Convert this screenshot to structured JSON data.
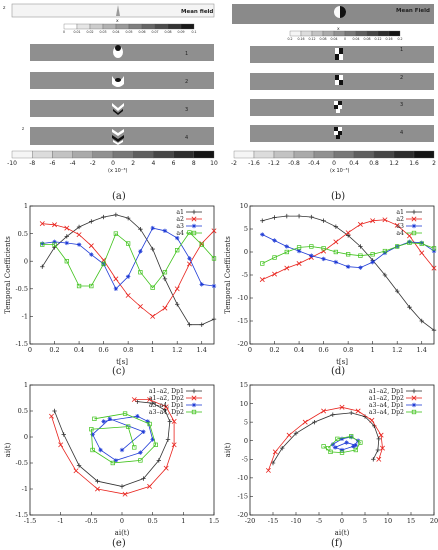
{
  "captions": {
    "a": "(a)",
    "b": "(b)",
    "c": "(c)",
    "d": "(d)",
    "e": "(e)",
    "f": "(f)"
  },
  "field_panels": [
    {
      "id": "a",
      "mean_label": "Mean field",
      "mean_ticks": [
        "0",
        "0.01",
        "0.02",
        "0.03",
        "0.04",
        "0.05",
        "0.06",
        "0.07",
        "0.08",
        "0.09",
        "0.1"
      ],
      "mode_labels": [
        "1",
        "2",
        "3",
        "4"
      ],
      "bar_ticks": [
        "-10",
        "-8",
        "-6",
        "-4",
        "-2",
        "0",
        "2",
        "4",
        "6",
        "8",
        "10"
      ],
      "bar_unit": "(x 10⁻³)"
    },
    {
      "id": "b",
      "mean_label": "Mean Field",
      "mean_ticks": [
        "0.2",
        "0.16",
        "0.12",
        "0.08",
        "0.04",
        "0",
        "0.04",
        "0.08",
        "0.12",
        "0.16",
        "0.2"
      ],
      "mode_labels": [
        "1",
        "2",
        "3",
        "4"
      ],
      "bar_ticks": [
        "-2",
        "-1.6",
        "-1.2",
        "-0.8",
        "-0.4",
        "0",
        "0.4",
        "0.8",
        "1.2",
        "1.6",
        "2"
      ],
      "bar_unit": "(x 10⁻³)"
    }
  ],
  "chart_data": [
    {
      "id": "c",
      "type": "line",
      "ylabel": "Temporal Coefficients",
      "xlabel": "t[s]",
      "xlim": [
        0,
        1.5
      ],
      "ylim": [
        -1.5,
        1
      ],
      "xticks": [
        "0",
        "0.2",
        "0.4",
        "0.6",
        "0.8",
        "1",
        "1.2",
        "1.4"
      ],
      "yticks": [
        "-1.5",
        "-1",
        "-0.5",
        "0",
        "0.5",
        "1"
      ],
      "x": [
        0.1,
        0.2,
        0.3,
        0.4,
        0.5,
        0.6,
        0.7,
        0.8,
        0.9,
        1.0,
        1.1,
        1.2,
        1.3,
        1.4,
        1.5
      ],
      "series": [
        {
          "name": "a1",
          "color": "#333333",
          "marker": "plus",
          "values": [
            -0.1,
            0.25,
            0.45,
            0.62,
            0.72,
            0.8,
            0.84,
            0.78,
            0.58,
            0.22,
            -0.32,
            -0.78,
            -1.15,
            -1.15,
            -1.05
          ]
        },
        {
          "name": "a2",
          "color": "#e8231d",
          "marker": "x",
          "values": [
            0.68,
            0.66,
            0.6,
            0.48,
            0.28,
            0.02,
            -0.32,
            -0.62,
            -0.82,
            -1.0,
            -0.85,
            -0.5,
            -0.05,
            0.32,
            0.55
          ]
        },
        {
          "name": "a3",
          "color": "#1f3bd6",
          "marker": "star",
          "values": [
            0.32,
            0.35,
            0.33,
            0.3,
            0.12,
            -0.05,
            -0.5,
            -0.28,
            0.18,
            0.6,
            0.55,
            0.42,
            0.05,
            -0.42,
            -0.45
          ]
        },
        {
          "name": "a4",
          "color": "#3ec21a",
          "marker": "square",
          "values": [
            0.3,
            0.3,
            0.0,
            -0.45,
            -0.45,
            -0.05,
            0.5,
            0.32,
            -0.2,
            -0.48,
            -0.2,
            0.2,
            0.52,
            0.3,
            0.05
          ]
        }
      ]
    },
    {
      "id": "d",
      "type": "line",
      "ylabel": "Temporal Coefficients",
      "xlabel": "t[s]",
      "xlim": [
        0,
        1.5
      ],
      "ylim": [
        -20,
        10
      ],
      "xticks": [
        "0",
        "0.2",
        "0.4",
        "0.6",
        "0.8",
        "1",
        "1.2",
        "1.4"
      ],
      "yticks": [
        "-20",
        "-15",
        "-10",
        "-5",
        "0",
        "5",
        "10"
      ],
      "x": [
        0.1,
        0.2,
        0.3,
        0.4,
        0.5,
        0.6,
        0.7,
        0.8,
        0.9,
        1.0,
        1.1,
        1.2,
        1.3,
        1.4,
        1.5
      ],
      "series": [
        {
          "name": "a1",
          "color": "#333333",
          "marker": "plus",
          "values": [
            6.8,
            7.5,
            7.8,
            7.8,
            7.6,
            6.8,
            5.5,
            3.6,
            1.2,
            -1.8,
            -5,
            -8.5,
            -12,
            -15,
            -17
          ]
        },
        {
          "name": "a2",
          "color": "#e8231d",
          "marker": "x",
          "values": [
            -6,
            -4.8,
            -3.5,
            -2.5,
            -1.2,
            0.2,
            2.2,
            4.2,
            6,
            6.8,
            7,
            5.8,
            3.5,
            -0.2,
            -3.5
          ]
        },
        {
          "name": "a3",
          "color": "#1f3bd6",
          "marker": "star",
          "values": [
            3.8,
            2.5,
            1.2,
            0.2,
            -0.8,
            -1.5,
            -2.2,
            -3.2,
            -3.4,
            -2.2,
            -0.2,
            1.2,
            2.2,
            2,
            0.2
          ]
        },
        {
          "name": "a4",
          "color": "#3ec21a",
          "marker": "square",
          "values": [
            -2.5,
            -1.2,
            0,
            1,
            1.2,
            0.8,
            0,
            -0.5,
            -0.8,
            -0.5,
            0.2,
            1.2,
            2,
            1.8,
            0.8
          ]
        }
      ]
    },
    {
      "id": "e",
      "type": "scatter",
      "ylabel": "ai(t)",
      "xlabel": "ai(t)",
      "xlim": [
        -1.5,
        1.5
      ],
      "ylim": [
        -1.5,
        1
      ],
      "xticks": [
        "-1.5",
        "-1",
        "-0.5",
        "0",
        "0.5",
        "1",
        "1.5"
      ],
      "yticks": [
        "-1.5",
        "-1",
        "-0.5",
        "0",
        "0.5",
        "1"
      ],
      "series": [
        {
          "name": "a1–a2, Dp1",
          "color": "#333333",
          "marker": "plus",
          "points": [
            [
              -1.1,
              0.5
            ],
            [
              -0.95,
              0.05
            ],
            [
              -0.7,
              -0.55
            ],
            [
              -0.4,
              -0.85
            ],
            [
              0,
              -0.95
            ],
            [
              0.35,
              -0.8
            ],
            [
              0.6,
              -0.45
            ],
            [
              0.75,
              -0.05
            ],
            [
              0.78,
              0.3
            ],
            [
              0.7,
              0.52
            ],
            [
              0.5,
              0.65
            ],
            [
              0.25,
              0.68
            ]
          ]
        },
        {
          "name": "a1–a2, Dp2",
          "color": "#e8231d",
          "marker": "x",
          "points": [
            [
              -1.15,
              0.4
            ],
            [
              -1.0,
              -0.15
            ],
            [
              -0.75,
              -0.65
            ],
            [
              -0.4,
              -1.0
            ],
            [
              0.05,
              -1.1
            ],
            [
              0.45,
              -0.95
            ],
            [
              0.72,
              -0.6
            ],
            [
              0.85,
              -0.15
            ],
            [
              0.85,
              0.3
            ],
            [
              0.72,
              0.58
            ],
            [
              0.45,
              0.72
            ],
            [
              0.2,
              0.72
            ]
          ]
        },
        {
          "name": "a3–a4, Dp1",
          "color": "#1f3bd6",
          "marker": "star",
          "points": [
            [
              -0.3,
              0.3
            ],
            [
              0.25,
              0.4
            ],
            [
              0.42,
              0.3
            ],
            [
              0.5,
              -0.05
            ],
            [
              0.3,
              -0.3
            ],
            [
              -0.1,
              -0.45
            ],
            [
              -0.35,
              -0.25
            ],
            [
              -0.48,
              0.05
            ],
            [
              -0.2,
              0.35
            ],
            [
              0.35,
              0.1
            ],
            [
              0.0,
              -0.25
            ]
          ]
        },
        {
          "name": "a3–a4, Dp2",
          "color": "#3ec21a",
          "marker": "square",
          "points": [
            [
              -0.45,
              0.35
            ],
            [
              0.05,
              0.45
            ],
            [
              0.45,
              0.25
            ],
            [
              0.55,
              -0.15
            ],
            [
              0.3,
              -0.45
            ],
            [
              -0.15,
              -0.5
            ],
            [
              -0.48,
              -0.25
            ],
            [
              -0.5,
              0.15
            ],
            [
              0.1,
              0.2
            ],
            [
              0.2,
              -0.2
            ]
          ]
        }
      ]
    },
    {
      "id": "f",
      "type": "scatter",
      "ylabel": "ai(t)",
      "xlabel": "ai(t)",
      "xlim": [
        -20,
        20
      ],
      "ylim": [
        -20,
        15
      ],
      "xticks": [
        "-20",
        "-15",
        "-10",
        "-5",
        "0",
        "5",
        "10",
        "15",
        "20"
      ],
      "yticks": [
        "-20",
        "-15",
        "-10",
        "-5",
        "0",
        "5",
        "10",
        "15"
      ],
      "series": [
        {
          "name": "a1–a2, Dp1",
          "color": "#333333",
          "marker": "plus",
          "points": [
            [
              -15,
              -6
            ],
            [
              -13,
              -2
            ],
            [
              -10,
              2
            ],
            [
              -6,
              5
            ],
            [
              -2,
              7
            ],
            [
              2,
              7.5
            ],
            [
              5,
              6.5
            ],
            [
              7,
              4
            ],
            [
              8,
              0.5
            ],
            [
              7.8,
              -2.5
            ],
            [
              6.8,
              -5
            ]
          ]
        },
        {
          "name": "a1–a2, Dp2",
          "color": "#e8231d",
          "marker": "x",
          "points": [
            [
              -16,
              -8
            ],
            [
              -14.5,
              -3
            ],
            [
              -11.5,
              1.5
            ],
            [
              -8,
              5
            ],
            [
              -4,
              8
            ],
            [
              0,
              9
            ],
            [
              3.5,
              8
            ],
            [
              6.5,
              5.5
            ],
            [
              8.5,
              1.5
            ],
            [
              8.8,
              -2
            ],
            [
              8,
              -5
            ]
          ]
        },
        {
          "name": "a3–a4, Dp1",
          "color": "#1f3bd6",
          "marker": "star",
          "points": [
            [
              -2,
              -1
            ],
            [
              0,
              0.5
            ],
            [
              2,
              1
            ],
            [
              3.5,
              0
            ],
            [
              2.5,
              -1.5
            ],
            [
              0,
              -2.5
            ],
            [
              -1.5,
              -1.8
            ],
            [
              1,
              -0.5
            ],
            [
              3,
              -1.2
            ]
          ]
        },
        {
          "name": "a3–a4, Dp2",
          "color": "#3ec21a",
          "marker": "square",
          "points": [
            [
              -3,
              -2
            ],
            [
              -1,
              0.5
            ],
            [
              2,
              1.2
            ],
            [
              4,
              -0.5
            ],
            [
              3,
              -2.5
            ],
            [
              0,
              -3.2
            ],
            [
              -2.5,
              -3
            ],
            [
              -4,
              -1.5
            ]
          ]
        }
      ]
    }
  ]
}
